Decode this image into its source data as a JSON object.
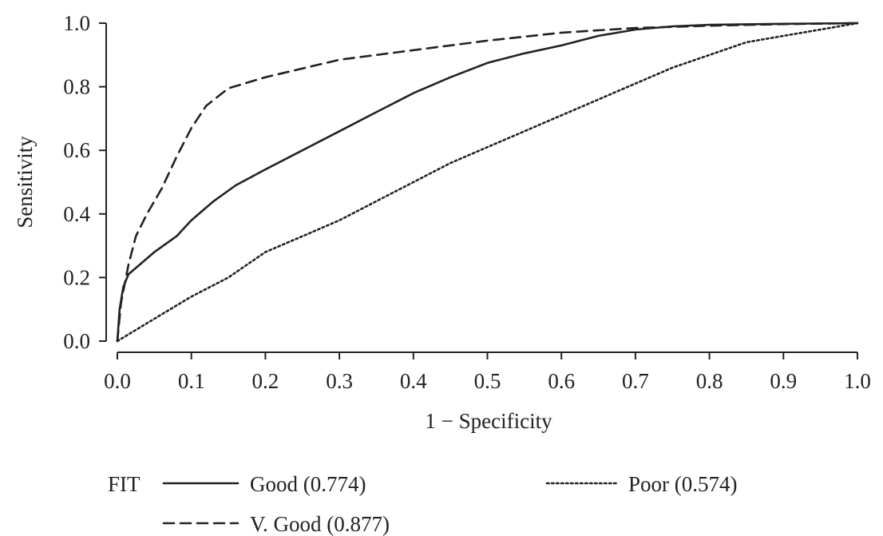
{
  "chart_data": {
    "type": "line",
    "title": "",
    "xlabel": "1 − Specificity",
    "ylabel": "Sensitivity",
    "xlim": [
      0,
      1
    ],
    "ylim": [
      0,
      1
    ],
    "xticks": [
      "0.0",
      "0.1",
      "0.2",
      "0.3",
      "0.4",
      "0.5",
      "0.6",
      "0.7",
      "0.8",
      "0.9",
      "1.0"
    ],
    "yticks": [
      "0.0",
      "0.2",
      "0.4",
      "0.6",
      "0.8",
      "1.0"
    ],
    "grid": false,
    "legend": {
      "title": "FIT",
      "placement": "bottom"
    },
    "series": [
      {
        "name": "Good (0.774)",
        "style": "solid",
        "x": [
          0.0,
          0.003,
          0.008,
          0.015,
          0.03,
          0.05,
          0.08,
          0.1,
          0.13,
          0.16,
          0.2,
          0.25,
          0.3,
          0.35,
          0.4,
          0.45,
          0.5,
          0.55,
          0.6,
          0.65,
          0.7,
          0.75,
          0.8,
          0.9,
          1.0
        ],
        "y": [
          0.0,
          0.1,
          0.17,
          0.21,
          0.24,
          0.28,
          0.33,
          0.38,
          0.44,
          0.49,
          0.54,
          0.6,
          0.66,
          0.72,
          0.78,
          0.83,
          0.875,
          0.905,
          0.93,
          0.96,
          0.98,
          0.99,
          0.995,
          0.998,
          1.0
        ]
      },
      {
        "name": "V. Good (0.877)",
        "style": "dashed",
        "x": [
          0.0,
          0.005,
          0.015,
          0.025,
          0.04,
          0.06,
          0.08,
          0.1,
          0.12,
          0.15,
          0.2,
          0.3,
          0.4,
          0.5,
          0.6,
          0.7,
          0.8,
          0.9,
          1.0
        ],
        "y": [
          0.0,
          0.12,
          0.24,
          0.33,
          0.4,
          0.48,
          0.58,
          0.67,
          0.74,
          0.795,
          0.83,
          0.885,
          0.915,
          0.945,
          0.97,
          0.985,
          0.992,
          0.997,
          1.0
        ]
      },
      {
        "name": "Poor (0.574)",
        "style": "dotted",
        "x": [
          0.0,
          0.05,
          0.1,
          0.15,
          0.2,
          0.25,
          0.3,
          0.35,
          0.4,
          0.45,
          0.5,
          0.55,
          0.6,
          0.65,
          0.7,
          0.75,
          0.8,
          0.85,
          0.9,
          0.95,
          1.0
        ],
        "y": [
          0.0,
          0.07,
          0.14,
          0.2,
          0.28,
          0.33,
          0.38,
          0.44,
          0.5,
          0.56,
          0.61,
          0.66,
          0.71,
          0.76,
          0.81,
          0.86,
          0.9,
          0.94,
          0.96,
          0.98,
          1.0
        ]
      }
    ]
  }
}
